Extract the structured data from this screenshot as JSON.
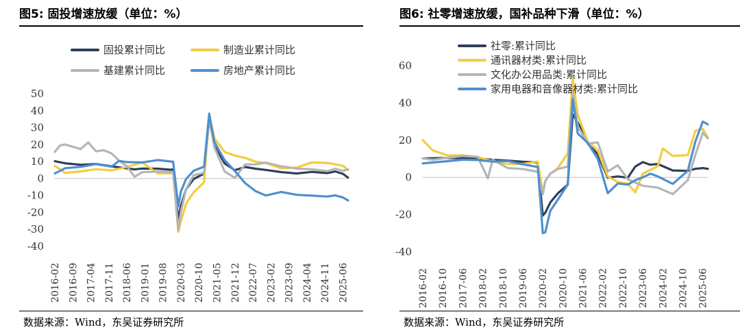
{
  "panels": [
    {
      "fig_title": "图5:  固投增速放缓（单位：%）",
      "source": "数据来源：Wind，东吴证券研究所"
    },
    {
      "fig_title": "图6:  社零增速放缓，国补品种下滑（单位：%）",
      "source": "数据来源：Wind，东吴证券研究所"
    }
  ],
  "chart_data": [
    {
      "type": "line",
      "title": "固投增速放缓（单位：%）",
      "xlabel": "",
      "ylabel": "",
      "ylim": [
        -40,
        50
      ],
      "yticks": [
        -40,
        -30,
        -20,
        -10,
        0,
        10,
        20,
        30,
        40,
        50
      ],
      "x_start": "2016-02",
      "x_end": "2025-08",
      "xticks": [
        "2016-02",
        "2016-09",
        "2017-04",
        "2017-11",
        "2018-06",
        "2019-01",
        "2019-08",
        "2020-03",
        "2020-10",
        "2021-05",
        "2021-12",
        "2022-07",
        "2023-02",
        "2023-09",
        "2024-04",
        "2024-11",
        "2025-06"
      ],
      "grid": false,
      "legend_position": "top",
      "series": [
        {
          "name": "固投累计同比",
          "color": "#2f3f58",
          "x": [
            "2016-02",
            "2016-06",
            "2016-12",
            "2017-06",
            "2017-12",
            "2018-06",
            "2018-09",
            "2018-12",
            "2019-06",
            "2019-11",
            "2019-12",
            "2020-02",
            "2020-03",
            "2020-05",
            "2020-08",
            "2020-12",
            "2021-02",
            "2021-04",
            "2021-08",
            "2021-12",
            "2022-04",
            "2022-08",
            "2022-12",
            "2023-06",
            "2023-12",
            "2024-06",
            "2024-12",
            "2025-03",
            "2025-06",
            "2025-08"
          ],
          "values": [
            10.2,
            9.0,
            8.1,
            8.6,
            7.2,
            6.0,
            5.4,
            5.9,
            5.8,
            5.2,
            5.4,
            -24.5,
            -16.1,
            -6.3,
            -0.3,
            2.9,
            35.0,
            19.9,
            8.9,
            4.9,
            6.8,
            5.8,
            5.1,
            3.8,
            3.0,
            3.9,
            3.2,
            4.2,
            2.8,
            0.5
          ]
        },
        {
          "name": "制造业累计同比",
          "color": "#f4cc3e",
          "x": [
            "2016-02",
            "2016-06",
            "2016-12",
            "2017-06",
            "2017-12",
            "2018-06",
            "2018-12",
            "2019-06",
            "2019-12",
            "2020-02",
            "2020-03",
            "2020-05",
            "2020-08",
            "2020-12",
            "2021-02",
            "2021-04",
            "2021-08",
            "2021-12",
            "2022-04",
            "2022-08",
            "2022-12",
            "2023-06",
            "2023-12",
            "2024-06",
            "2024-12",
            "2025-06",
            "2025-08"
          ],
          "values": [
            7.5,
            3.3,
            4.2,
            5.5,
            4.8,
            6.8,
            9.5,
            3.0,
            3.1,
            -31.5,
            -25.2,
            -14.8,
            -8.1,
            -2.2,
            37.3,
            23.8,
            15.7,
            13.5,
            12.2,
            10.0,
            9.1,
            6.0,
            6.5,
            9.5,
            9.2,
            7.5,
            5.1
          ]
        },
        {
          "name": "基建累计同比",
          "color": "#b5b5b5",
          "x": [
            "2016-02",
            "2016-04",
            "2016-06",
            "2016-12",
            "2017-03",
            "2017-06",
            "2017-09",
            "2017-12",
            "2018-03",
            "2018-06",
            "2018-09",
            "2018-12",
            "2019-06",
            "2019-12",
            "2020-02",
            "2020-03",
            "2020-05",
            "2020-08",
            "2020-12",
            "2021-02",
            "2021-04",
            "2021-08",
            "2021-12",
            "2022-04",
            "2022-08",
            "2022-12",
            "2023-06",
            "2023-12",
            "2024-06",
            "2024-12",
            "2025-03",
            "2025-06",
            "2025-08"
          ],
          "values": [
            15.7,
            19.5,
            20.1,
            17.4,
            21.3,
            16.0,
            16.7,
            14.9,
            10.5,
            7.3,
            1.0,
            3.8,
            4.1,
            3.8,
            -30.3,
            -19.7,
            -6.3,
            2.0,
            3.4,
            36.6,
            18.4,
            4.2,
            0.4,
            8.3,
            8.3,
            9.4,
            7.2,
            5.9,
            5.4,
            4.4,
            5.8,
            4.6,
            5.4
          ]
        },
        {
          "name": "房地产累计同比",
          "color": "#4e8fcf",
          "x": [
            "2016-02",
            "2016-06",
            "2016-12",
            "2017-06",
            "2017-12",
            "2018-03",
            "2018-06",
            "2018-12",
            "2019-06",
            "2019-12",
            "2020-02",
            "2020-03",
            "2020-05",
            "2020-08",
            "2020-12",
            "2021-02",
            "2021-04",
            "2021-08",
            "2021-12",
            "2022-04",
            "2022-08",
            "2022-12",
            "2023-06",
            "2023-12",
            "2024-06",
            "2024-12",
            "2025-03",
            "2025-06",
            "2025-08"
          ],
          "values": [
            3.0,
            6.1,
            6.9,
            8.5,
            7.0,
            10.4,
            9.7,
            9.5,
            10.9,
            9.9,
            -16.3,
            -7.7,
            -0.3,
            4.6,
            7.0,
            38.3,
            21.6,
            10.9,
            4.4,
            -2.7,
            -7.4,
            -10.0,
            -7.9,
            -9.6,
            -10.1,
            -10.6,
            -9.9,
            -11.2,
            -12.9
          ]
        }
      ]
    },
    {
      "type": "line",
      "title": "社零增速放缓，国补品种下滑（单位：%）",
      "xlabel": "",
      "ylabel": "",
      "ylim": [
        -40,
        60
      ],
      "yticks": [
        -40,
        -20,
        0,
        20,
        40,
        60
      ],
      "x_start": "2016-02",
      "x_end": "2025-08",
      "xticks": [
        "2016-02",
        "2016-10",
        "2017-06",
        "2018-02",
        "2018-10",
        "2019-06",
        "2020-02",
        "2020-10",
        "2021-06",
        "2022-02",
        "2022-10",
        "2023-06",
        "2024-02",
        "2024-10",
        "2025-06"
      ],
      "grid": false,
      "legend_position": "top-left",
      "series": [
        {
          "name": "社零:累计同比",
          "color": "#2f3f58",
          "x": [
            "2016-02",
            "2016-06",
            "2016-12",
            "2017-06",
            "2017-12",
            "2018-06",
            "2018-12",
            "2019-06",
            "2019-12",
            "2020-02",
            "2020-03",
            "2020-05",
            "2020-08",
            "2020-12",
            "2021-02",
            "2021-04",
            "2021-08",
            "2021-12",
            "2022-04",
            "2022-08",
            "2022-12",
            "2023-03",
            "2023-06",
            "2023-09",
            "2023-12",
            "2024-06",
            "2024-12",
            "2025-03",
            "2025-06",
            "2025-08"
          ],
          "values": [
            10.2,
            10.3,
            10.4,
            10.4,
            10.2,
            9.4,
            9.0,
            8.4,
            8.0,
            -20.5,
            -19.0,
            -13.5,
            -8.6,
            -3.9,
            33.8,
            29.6,
            18.1,
            12.5,
            -0.2,
            0.5,
            -0.2,
            5.8,
            8.2,
            6.8,
            7.2,
            3.7,
            3.5,
            4.6,
            5.0,
            4.6
          ]
        },
        {
          "name": "通讯器材类:累计同比",
          "color": "#f4cc3e",
          "x": [
            "2016-02",
            "2016-06",
            "2016-12",
            "2017-06",
            "2017-12",
            "2018-06",
            "2018-12",
            "2019-06",
            "2019-12",
            "2020-02",
            "2020-03",
            "2020-05",
            "2020-08",
            "2020-12",
            "2021-02",
            "2021-04",
            "2021-08",
            "2021-12",
            "2022-04",
            "2022-08",
            "2022-12",
            "2023-03",
            "2023-06",
            "2023-09",
            "2023-12",
            "2024-02",
            "2024-06",
            "2024-12",
            "2025-03",
            "2025-06",
            "2025-08"
          ],
          "values": [
            20.0,
            14.5,
            11.8,
            11.8,
            11.0,
            8.5,
            7.2,
            7.2,
            8.5,
            -8.0,
            -2.0,
            2.0,
            5.0,
            12.9,
            53.0,
            33.8,
            19.1,
            14.6,
            0.5,
            -2.5,
            -3.4,
            -8.0,
            2.0,
            4.0,
            6.0,
            15.5,
            11.5,
            12.0,
            25.0,
            26.0,
            21.5
          ]
        },
        {
          "name": "文化办公用品类:累计同比",
          "color": "#b5b5b5",
          "x": [
            "2016-02",
            "2016-06",
            "2016-12",
            "2017-06",
            "2017-12",
            "2018-04",
            "2018-06",
            "2018-12",
            "2019-06",
            "2019-12",
            "2020-02",
            "2020-03",
            "2020-05",
            "2020-08",
            "2020-12",
            "2021-02",
            "2021-04",
            "2021-08",
            "2021-12",
            "2022-04",
            "2022-08",
            "2022-12",
            "2023-06",
            "2023-12",
            "2024-06",
            "2024-12",
            "2025-03",
            "2025-06",
            "2025-08"
          ],
          "values": [
            10.2,
            9.5,
            10.5,
            11.5,
            11.0,
            -0.5,
            9.5,
            5.0,
            4.5,
            3.0,
            -9.0,
            -2.0,
            2.0,
            4.5,
            5.8,
            45.5,
            27.5,
            18.1,
            18.8,
            3.2,
            6.5,
            -1.0,
            -4.5,
            -5.5,
            -9.0,
            -1.5,
            12.0,
            24.0,
            21.0
          ]
        },
        {
          "name": "家用电器和音像器材类:累计同比",
          "color": "#4e8fcf",
          "x": [
            "2016-02",
            "2016-06",
            "2016-12",
            "2017-06",
            "2017-12",
            "2018-06",
            "2018-12",
            "2019-06",
            "2019-12",
            "2020-02",
            "2020-03",
            "2020-05",
            "2020-08",
            "2020-12",
            "2021-02",
            "2021-04",
            "2021-08",
            "2021-12",
            "2022-04",
            "2022-08",
            "2022-12",
            "2023-03",
            "2023-06",
            "2023-09",
            "2023-12",
            "2024-06",
            "2024-12",
            "2025-03",
            "2025-06",
            "2025-08"
          ],
          "values": [
            7.5,
            8.0,
            8.7,
            9.5,
            9.3,
            8.5,
            8.8,
            7.0,
            5.6,
            -30.0,
            -29.5,
            -18.0,
            -12.0,
            -3.8,
            42.0,
            23.6,
            18.5,
            10.0,
            -8.5,
            -3.3,
            -3.9,
            -1.5,
            0.0,
            2.0,
            0.5,
            -3.5,
            3.5,
            19.2,
            30.0,
            28.5
          ]
        }
      ]
    }
  ]
}
